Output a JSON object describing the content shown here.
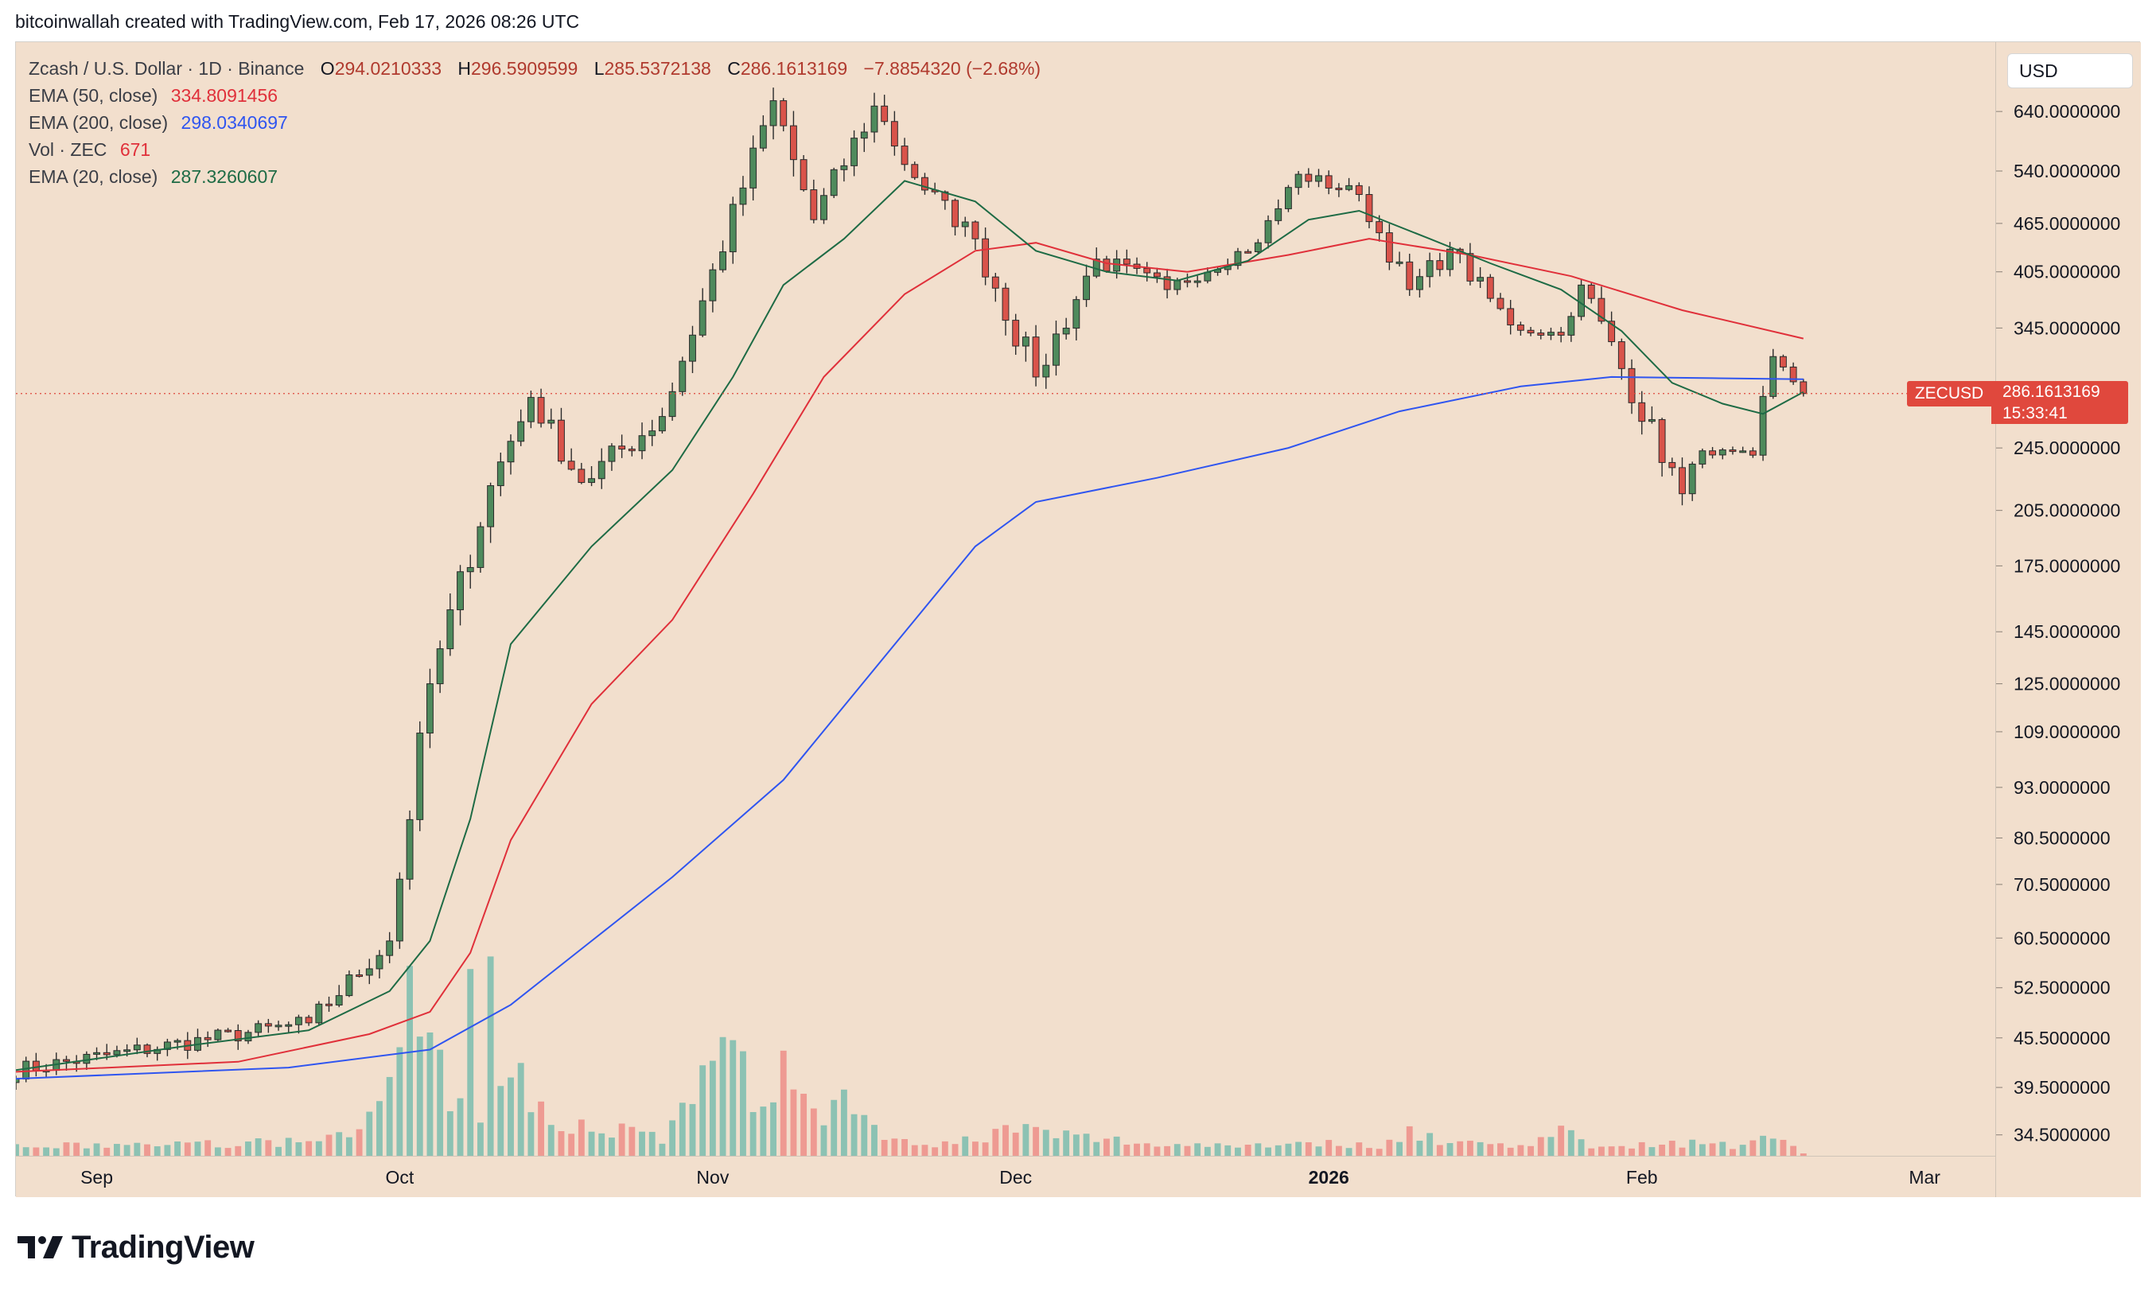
{
  "credit": "bitcoinwallah created with TradingView.com, Feb 17, 2026 08:26 UTC",
  "brand": "TradingView",
  "legend": {
    "symbol": "Zcash / U.S. Dollar · 1D · Binance",
    "o_label": "O",
    "o_value": "294.0210333",
    "h_label": "H",
    "h_value": "296.5909599",
    "l_label": "L",
    "l_value": "285.5372138",
    "c_label": "C",
    "c_value": "286.1613169",
    "change": "−7.8854320 (−2.68%)",
    "ema50_label": "EMA (50, close)",
    "ema50_value": "334.8091456",
    "ema200_label": "EMA (200, close)",
    "ema200_value": "298.0340697",
    "vol_label": "Vol · ZEC",
    "vol_value": "671",
    "ema20_label": "EMA (20, close)",
    "ema20_value": "287.3260607"
  },
  "currency_button": "USD",
  "price_tag": {
    "symbol": "ZECUSD",
    "value": "286.1613169",
    "countdown": "15:33:41"
  },
  "colors": {
    "background": "#f2dfcd",
    "up": "#4e8a5c",
    "down": "#d9534a",
    "vol_up": "#8cc2b3",
    "vol_down": "#ee9a92",
    "ema20": "#1e6b45",
    "ema50": "#e0303a",
    "ema200": "#2f55f0",
    "price_tag": "#e0483d"
  },
  "chart_data": {
    "type": "candlestick",
    "title": "Zcash / U.S. Dollar · 1D · Binance",
    "scale": "log",
    "ylim": [
      32.5,
      780
    ],
    "y_ticks": [
      {
        "value": 640,
        "label": "640.0000000"
      },
      {
        "value": 540,
        "label": "540.0000000"
      },
      {
        "value": 465,
        "label": "465.0000000"
      },
      {
        "value": 405,
        "label": "405.0000000"
      },
      {
        "value": 345,
        "label": "345.0000000"
      },
      {
        "value": 245,
        "label": "245.0000000"
      },
      {
        "value": 205,
        "label": "205.0000000"
      },
      {
        "value": 175,
        "label": "175.0000000"
      },
      {
        "value": 145,
        "label": "145.0000000"
      },
      {
        "value": 125,
        "label": "125.0000000"
      },
      {
        "value": 109,
        "label": "109.0000000"
      },
      {
        "value": 93,
        "label": "93.0000000"
      },
      {
        "value": 80.5,
        "label": "80.5000000"
      },
      {
        "value": 70.5,
        "label": "70.5000000"
      },
      {
        "value": 60.5,
        "label": "60.5000000"
      },
      {
        "value": 52.5,
        "label": "52.5000000"
      },
      {
        "value": 45.5,
        "label": "45.5000000"
      },
      {
        "value": 39.5,
        "label": "39.5000000"
      },
      {
        "value": 34.5,
        "label": "34.5000000"
      }
    ],
    "x_ticks": [
      {
        "date": "2025-09-01",
        "label": "Sep",
        "bold": false
      },
      {
        "date": "2025-10-01",
        "label": "Oct",
        "bold": false
      },
      {
        "date": "2025-11-01",
        "label": "Nov",
        "bold": false
      },
      {
        "date": "2025-12-01",
        "label": "Dec",
        "bold": false
      },
      {
        "date": "2026-01-01",
        "label": "2026",
        "bold": true
      },
      {
        "date": "2026-02-01",
        "label": "Feb",
        "bold": false
      },
      {
        "date": "2026-03-01",
        "label": "Mar",
        "bold": false
      }
    ],
    "x_range": [
      "2025-08-24",
      "2026-03-08"
    ],
    "last_price": 286.16,
    "segments": [
      {
        "start": "2025-08-24",
        "end": "2025-09-22",
        "from": 41.5,
        "to": 47.5,
        "noise": 0.025
      },
      {
        "start": "2025-09-22",
        "end": "2025-09-30",
        "from": 47.5,
        "to": 60,
        "noise": 0.03
      },
      {
        "start": "2025-09-30",
        "end": "2025-10-04",
        "from": 60,
        "to": 125,
        "noise": 0.05
      },
      {
        "start": "2025-10-04",
        "end": "2025-10-10",
        "from": 125,
        "to": 220,
        "noise": 0.05
      },
      {
        "start": "2025-10-10",
        "end": "2025-10-14",
        "from": 220,
        "to": 283,
        "noise": 0.04
      },
      {
        "start": "2025-10-14",
        "end": "2025-10-19",
        "from": 283,
        "to": 222,
        "noise": 0.04
      },
      {
        "start": "2025-10-19",
        "end": "2025-10-27",
        "from": 222,
        "to": 268,
        "noise": 0.04
      },
      {
        "start": "2025-10-27",
        "end": "2025-11-07",
        "from": 268,
        "to": 660,
        "noise": 0.04
      },
      {
        "start": "2025-11-07",
        "end": "2025-11-11",
        "from": 660,
        "to": 470,
        "noise": 0.05
      },
      {
        "start": "2025-11-11",
        "end": "2025-11-17",
        "from": 470,
        "to": 650,
        "noise": 0.04
      },
      {
        "start": "2025-11-17",
        "end": "2025-11-21",
        "from": 650,
        "to": 530,
        "noise": 0.04
      },
      {
        "start": "2025-11-21",
        "end": "2025-11-27",
        "from": 530,
        "to": 445,
        "noise": 0.03
      },
      {
        "start": "2025-11-27",
        "end": "2025-12-03",
        "from": 445,
        "to": 300,
        "noise": 0.05
      },
      {
        "start": "2025-12-03",
        "end": "2025-12-09",
        "from": 300,
        "to": 420,
        "noise": 0.04
      },
      {
        "start": "2025-12-09",
        "end": "2025-12-16",
        "from": 420,
        "to": 385,
        "noise": 0.03
      },
      {
        "start": "2025-12-16",
        "end": "2025-12-25",
        "from": 385,
        "to": 440,
        "noise": 0.02
      },
      {
        "start": "2025-12-25",
        "end": "2025-12-29",
        "from": 440,
        "to": 535,
        "noise": 0.03
      },
      {
        "start": "2025-12-29",
        "end": "2026-01-04",
        "from": 535,
        "to": 505,
        "noise": 0.02
      },
      {
        "start": "2026-01-04",
        "end": "2026-01-09",
        "from": 505,
        "to": 385,
        "noise": 0.03
      },
      {
        "start": "2026-01-09",
        "end": "2026-01-13",
        "from": 385,
        "to": 432,
        "noise": 0.03
      },
      {
        "start": "2026-01-13",
        "end": "2026-01-19",
        "from": 432,
        "to": 348,
        "noise": 0.03
      },
      {
        "start": "2026-01-19",
        "end": "2026-01-24",
        "from": 348,
        "to": 338,
        "noise": 0.02
      },
      {
        "start": "2026-01-24",
        "end": "2026-01-26",
        "from": 338,
        "to": 390,
        "noise": 0.02
      },
      {
        "start": "2026-01-26",
        "end": "2026-02-05",
        "from": 390,
        "to": 215,
        "noise": 0.04
      },
      {
        "start": "2026-02-05",
        "end": "2026-02-07",
        "from": 215,
        "to": 243,
        "noise": 0.03
      },
      {
        "start": "2026-02-07",
        "end": "2026-02-12",
        "from": 243,
        "to": 240,
        "noise": 0.01
      },
      {
        "start": "2026-02-12",
        "end": "2026-02-14",
        "from": 240,
        "to": 318,
        "noise": 0.03
      },
      {
        "start": "2026-02-14",
        "end": "2026-02-17",
        "from": 318,
        "to": 286.16,
        "noise": 0.01
      }
    ],
    "ema20": [
      [
        "2025-08-24",
        41.5
      ],
      [
        "2025-09-10",
        44.5
      ],
      [
        "2025-09-22",
        46.5
      ],
      [
        "2025-09-30",
        52
      ],
      [
        "2025-10-04",
        60
      ],
      [
        "2025-10-08",
        85
      ],
      [
        "2025-10-12",
        140
      ],
      [
        "2025-10-20",
        185
      ],
      [
        "2025-10-28",
        230
      ],
      [
        "2025-11-03",
        300
      ],
      [
        "2025-11-08",
        390
      ],
      [
        "2025-11-14",
        445
      ],
      [
        "2025-11-20",
        525
      ],
      [
        "2025-11-27",
        495
      ],
      [
        "2025-12-03",
        430
      ],
      [
        "2025-12-10",
        405
      ],
      [
        "2025-12-17",
        395
      ],
      [
        "2025-12-24",
        418
      ],
      [
        "2025-12-30",
        470
      ],
      [
        "2026-01-04",
        482
      ],
      [
        "2026-01-11",
        445
      ],
      [
        "2026-01-17",
        415
      ],
      [
        "2026-01-24",
        385
      ],
      [
        "2026-01-30",
        342
      ],
      [
        "2026-02-04",
        295
      ],
      [
        "2026-02-09",
        278
      ],
      [
        "2026-02-13",
        270
      ],
      [
        "2026-02-17",
        287.33
      ]
    ],
    "ema50": [
      [
        "2025-08-24",
        41.3
      ],
      [
        "2025-09-15",
        42.5
      ],
      [
        "2025-09-28",
        46
      ],
      [
        "2025-10-04",
        49
      ],
      [
        "2025-10-08",
        58
      ],
      [
        "2025-10-12",
        80
      ],
      [
        "2025-10-20",
        118
      ],
      [
        "2025-10-28",
        150
      ],
      [
        "2025-11-05",
        215
      ],
      [
        "2025-11-12",
        300
      ],
      [
        "2025-11-20",
        380
      ],
      [
        "2025-11-27",
        430
      ],
      [
        "2025-12-03",
        440
      ],
      [
        "2025-12-10",
        415
      ],
      [
        "2025-12-18",
        405
      ],
      [
        "2025-12-28",
        425
      ],
      [
        "2026-01-05",
        445
      ],
      [
        "2026-01-15",
        425
      ],
      [
        "2026-01-25",
        400
      ],
      [
        "2026-02-05",
        363
      ],
      [
        "2026-02-17",
        334.81
      ]
    ],
    "ema200": [
      [
        "2025-08-24",
        40.5
      ],
      [
        "2025-09-20",
        41.8
      ],
      [
        "2025-10-04",
        44
      ],
      [
        "2025-10-12",
        50
      ],
      [
        "2025-10-20",
        60
      ],
      [
        "2025-10-28",
        72
      ],
      [
        "2025-11-08",
        95
      ],
      [
        "2025-11-18",
        135
      ],
      [
        "2025-11-27",
        185
      ],
      [
        "2025-12-03",
        210
      ],
      [
        "2025-12-15",
        225
      ],
      [
        "2025-12-28",
        245
      ],
      [
        "2026-01-08",
        272
      ],
      [
        "2026-01-20",
        292
      ],
      [
        "2026-01-29",
        300
      ],
      [
        "2026-02-08",
        299
      ],
      [
        "2026-02-17",
        298.03
      ]
    ],
    "volume": {
      "last": 671,
      "note": "relative daily volume (0-1) read from histogram",
      "levels": [
        [
          "2025-08-24",
          0.04
        ],
        [
          "2025-09-22",
          0.06
        ],
        [
          "2025-09-29",
          0.18
        ],
        [
          "2025-10-01",
          0.48
        ],
        [
          "2025-10-02",
          0.72
        ],
        [
          "2025-10-03",
          0.45
        ],
        [
          "2025-10-05",
          0.35
        ],
        [
          "2025-10-07",
          0.22
        ],
        [
          "2025-10-08",
          0.68
        ],
        [
          "2025-10-09",
          0.12
        ],
        [
          "2025-10-10",
          0.72
        ],
        [
          "2025-10-11",
          0.3
        ],
        [
          "2025-10-13",
          0.36
        ],
        [
          "2025-10-14",
          0.25
        ],
        [
          "2025-10-16",
          0.12
        ],
        [
          "2025-10-19",
          0.14
        ],
        [
          "2025-10-23",
          0.12
        ],
        [
          "2025-10-27",
          0.08
        ],
        [
          "2025-10-31",
          0.35
        ],
        [
          "2025-11-02",
          0.4
        ],
        [
          "2025-11-03",
          0.54
        ],
        [
          "2025-11-05",
          0.25
        ],
        [
          "2025-11-07",
          0.35
        ],
        [
          "2025-11-09",
          0.35
        ],
        [
          "2025-11-10",
          0.28
        ],
        [
          "2025-11-12",
          0.2
        ],
        [
          "2025-11-14",
          0.25
        ],
        [
          "2025-11-16",
          0.15
        ],
        [
          "2025-11-19",
          0.08
        ],
        [
          "2025-11-24",
          0.05
        ],
        [
          "2025-12-01",
          0.12
        ],
        [
          "2025-12-03",
          0.1
        ],
        [
          "2025-12-08",
          0.08
        ],
        [
          "2025-12-15",
          0.05
        ],
        [
          "2025-12-25",
          0.05
        ],
        [
          "2025-12-30",
          0.06
        ],
        [
          "2026-01-06",
          0.04
        ],
        [
          "2026-01-09",
          0.12
        ],
        [
          "2026-01-12",
          0.06
        ],
        [
          "2026-01-20",
          0.05
        ],
        [
          "2026-01-24",
          0.1
        ],
        [
          "2026-01-27",
          0.05
        ],
        [
          "2026-02-03",
          0.05
        ],
        [
          "2026-02-06",
          0.06
        ],
        [
          "2026-02-10",
          0.04
        ],
        [
          "2026-02-14",
          0.1
        ],
        [
          "2026-02-16",
          0.06
        ],
        [
          "2026-02-17",
          0.01
        ]
      ]
    }
  }
}
